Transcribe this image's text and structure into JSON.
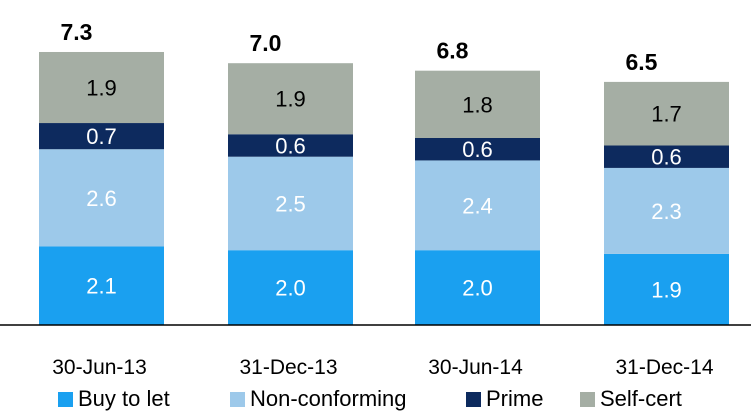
{
  "chart_data": {
    "type": "bar",
    "stacked": true,
    "categories": [
      "30-Jun-13",
      "31-Dec-13",
      "30-Jun-14",
      "31-Dec-14"
    ],
    "totals": [
      "7.3",
      "7.0",
      "6.8",
      "6.5"
    ],
    "series": [
      {
        "name": "Buy to let",
        "color": "#1aa0f0",
        "label_color": "#ffffff",
        "values": [
          2.1,
          2.0,
          2.0,
          1.9
        ]
      },
      {
        "name": "Non-conforming",
        "color": "#9dc9ea",
        "label_color": "#ffffff",
        "values": [
          2.6,
          2.5,
          2.4,
          2.3
        ]
      },
      {
        "name": "Prime",
        "color": "#0d2a5e",
        "label_color": "#ffffff",
        "values": [
          0.7,
          0.6,
          0.6,
          0.6
        ]
      },
      {
        "name": "Self-cert",
        "color": "#a5aea4",
        "label_color": "#000000",
        "values": [
          1.9,
          1.9,
          1.8,
          1.7
        ]
      }
    ],
    "grid": false,
    "legend_position": "bottom"
  }
}
